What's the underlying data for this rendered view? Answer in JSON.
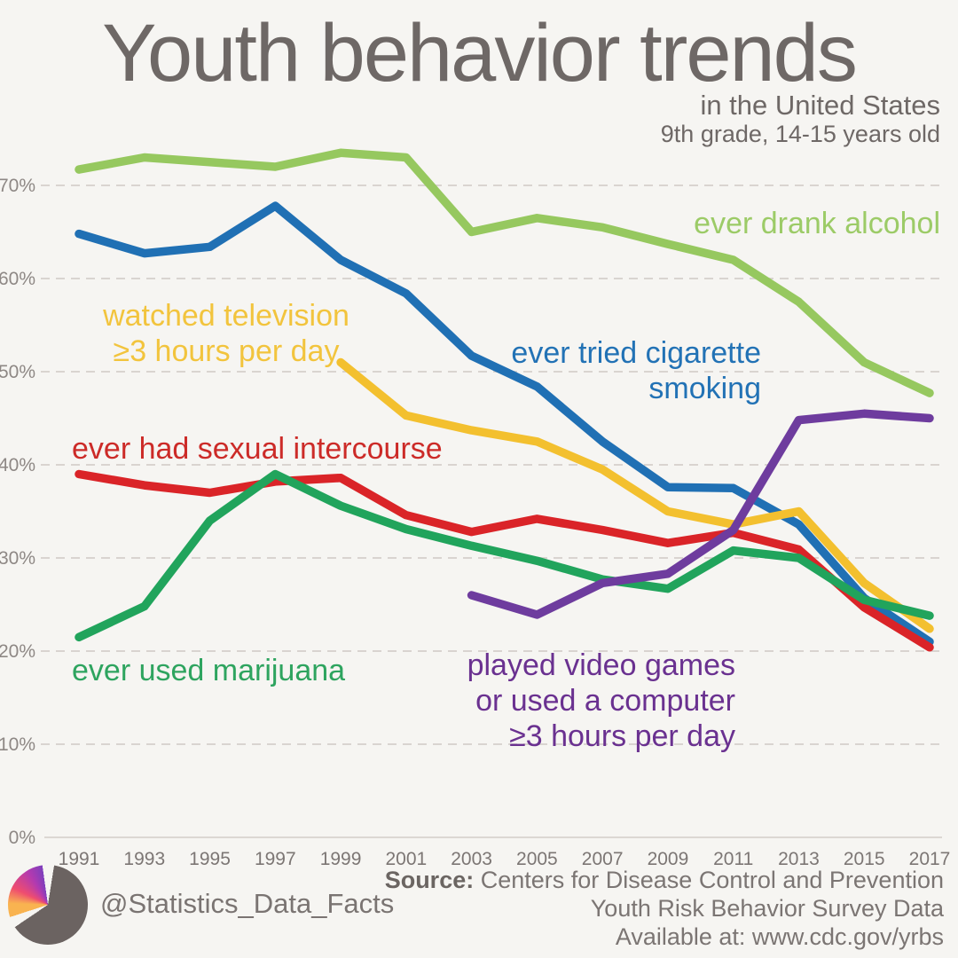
{
  "page": {
    "background": "#f6f5f2"
  },
  "header": {
    "title": "Youth behavior trends",
    "subtitle": "in the United States",
    "subtitle2": "9th grade, 14-15 years old"
  },
  "chart_data": {
    "type": "line",
    "x": [
      1991,
      1993,
      1995,
      1997,
      1999,
      2001,
      2003,
      2005,
      2007,
      2009,
      2011,
      2013,
      2015,
      2017
    ],
    "x_tick_labels": [
      "1991",
      "1993",
      "1995",
      "1997",
      "1999",
      "2001",
      "2003",
      "2005",
      "2007",
      "2009",
      "2011",
      "2013",
      "2015",
      "2017"
    ],
    "y_ticks": [
      0,
      10,
      20,
      30,
      40,
      50,
      60,
      70
    ],
    "y_tick_labels": [
      "0%",
      "10%",
      "20%",
      "30%",
      "40%",
      "50%",
      "60%",
      "70%"
    ],
    "ylim": [
      0,
      75
    ],
    "grid": "horizontal-dashed, zero-line-solid",
    "legend_position": "inline-annotations",
    "series": [
      {
        "name": "ever drank alcohol",
        "color": "#96c85f",
        "values": [
          71.7,
          73.0,
          72.5,
          72.0,
          73.5,
          73.0,
          65.0,
          66.5,
          65.5,
          63.7,
          62.0,
          57.5,
          51.0,
          47.7
        ]
      },
      {
        "name": "ever tried cigarette smoking",
        "color": "#2070b4",
        "values": [
          64.8,
          62.7,
          63.4,
          67.8,
          62.0,
          58.4,
          51.7,
          48.4,
          42.5,
          37.6,
          37.5,
          33.6,
          25.7,
          21.0
        ]
      },
      {
        "name": "watched television ≥3 hours per day",
        "color": "#f3c02f",
        "values": [
          null,
          null,
          null,
          null,
          51.0,
          45.3,
          43.7,
          42.5,
          39.5,
          35.0,
          33.6,
          35.0,
          27.3,
          22.4
        ]
      },
      {
        "name": "ever had sexual intercourse",
        "color": "#da2428",
        "values": [
          39.0,
          37.8,
          37.0,
          38.2,
          38.6,
          34.6,
          32.8,
          34.2,
          33.0,
          31.6,
          32.7,
          30.9,
          24.7,
          20.4
        ]
      },
      {
        "name": "ever used marijuana",
        "color": "#21a45c",
        "values": [
          21.5,
          24.8,
          34.0,
          39.0,
          35.6,
          33.1,
          31.3,
          29.7,
          27.7,
          26.7,
          30.8,
          30.0,
          25.5,
          23.8
        ]
      },
      {
        "name": "played video games or used a computer ≥3 hours per day",
        "color": "#6e3c9e",
        "values": [
          null,
          null,
          null,
          null,
          null,
          null,
          26.0,
          23.9,
          27.3,
          28.3,
          33.0,
          44.8,
          45.5,
          45.0
        ]
      }
    ],
    "annotations": [
      {
        "series": "ever drank alcohol",
        "color": "#9ccb67",
        "lines": [
          "ever drank alcohol"
        ]
      },
      {
        "series": "ever tried cigarette smoking",
        "color": "#2272b5",
        "lines": [
          "ever tried cigarette",
          "smoking"
        ]
      },
      {
        "series": "watched television ≥3 hours per day",
        "color": "#f2c43d",
        "lines": [
          "watched television",
          "≥3 hours per day"
        ]
      },
      {
        "series": "ever had sexual intercourse",
        "color": "#cc2b28",
        "lines": [
          "ever had sexual intercourse"
        ]
      },
      {
        "series": "ever used marijuana",
        "color": "#2ea45f",
        "lines": [
          "ever used marijuana"
        ]
      },
      {
        "series": "played video games or used a computer ≥3 hours per day",
        "color": "#6a3190",
        "lines": [
          "played video games",
          "or used a computer",
          "≥3 hours per day"
        ]
      }
    ]
  },
  "footer": {
    "logo": "pie-chart-logo",
    "handle": "@Statistics_Data_Facts",
    "source_label": "Source:",
    "source_line1": " Centers for Disease Control and Prevention",
    "source_line2": "Youth Risk Behavior Survey Data",
    "source_line3": "Available at: www.cdc.gov/yrbs"
  }
}
